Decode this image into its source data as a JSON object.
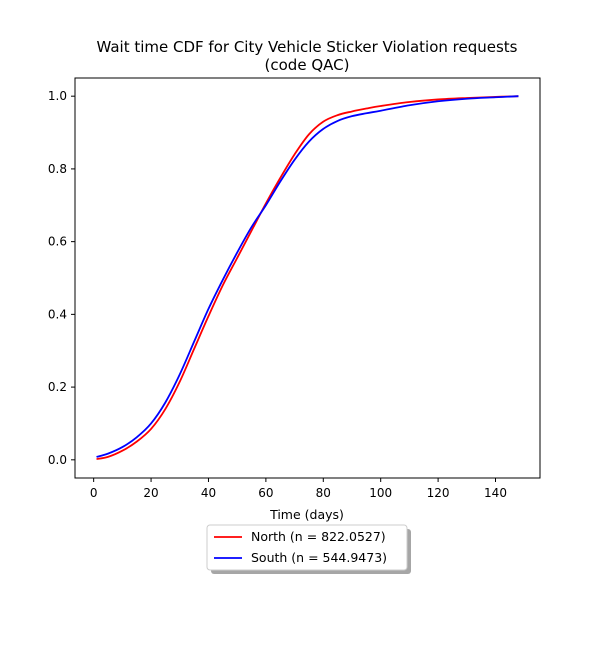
{
  "chart_data": {
    "type": "line",
    "title_line1": "Wait time CDF for City Vehicle Sticker Violation  requests",
    "title_line2": "(code QAC)",
    "xlabel": "Time (days)",
    "ylabel": "",
    "xlim": [
      -6.5,
      155.5
    ],
    "ylim": [
      -0.05,
      1.05
    ],
    "xticks": [
      0,
      20,
      40,
      60,
      80,
      100,
      120,
      140
    ],
    "yticks": [
      0.0,
      0.2,
      0.4,
      0.6,
      0.8,
      1.0
    ],
    "ytick_labels": [
      "0.0",
      "0.2",
      "0.4",
      "0.6",
      "0.8",
      "1.0"
    ],
    "grid": false,
    "legend_position": "below",
    "series": [
      {
        "name": "North (n = 822.0527)",
        "color": "#ff0000",
        "x": [
          1,
          5,
          10,
          15,
          20,
          25,
          30,
          35,
          40,
          45,
          50,
          55,
          60,
          65,
          70,
          75,
          80,
          85,
          90,
          95,
          100,
          110,
          120,
          130,
          140,
          148
        ],
        "y": [
          0.002,
          0.008,
          0.025,
          0.05,
          0.085,
          0.14,
          0.215,
          0.305,
          0.395,
          0.48,
          0.555,
          0.63,
          0.705,
          0.775,
          0.84,
          0.895,
          0.93,
          0.948,
          0.958,
          0.966,
          0.973,
          0.984,
          0.991,
          0.995,
          0.998,
          1.0
        ]
      },
      {
        "name": "South (n = 544.9473)",
        "color": "#0000ff",
        "x": [
          1,
          5,
          10,
          15,
          20,
          25,
          30,
          35,
          40,
          45,
          50,
          55,
          60,
          65,
          70,
          75,
          80,
          85,
          90,
          95,
          100,
          110,
          120,
          130,
          140,
          148
        ],
        "y": [
          0.008,
          0.017,
          0.035,
          0.062,
          0.1,
          0.158,
          0.235,
          0.325,
          0.415,
          0.495,
          0.57,
          0.64,
          0.7,
          0.765,
          0.825,
          0.875,
          0.91,
          0.932,
          0.945,
          0.953,
          0.96,
          0.975,
          0.986,
          0.993,
          0.997,
          1.0
        ]
      }
    ]
  }
}
